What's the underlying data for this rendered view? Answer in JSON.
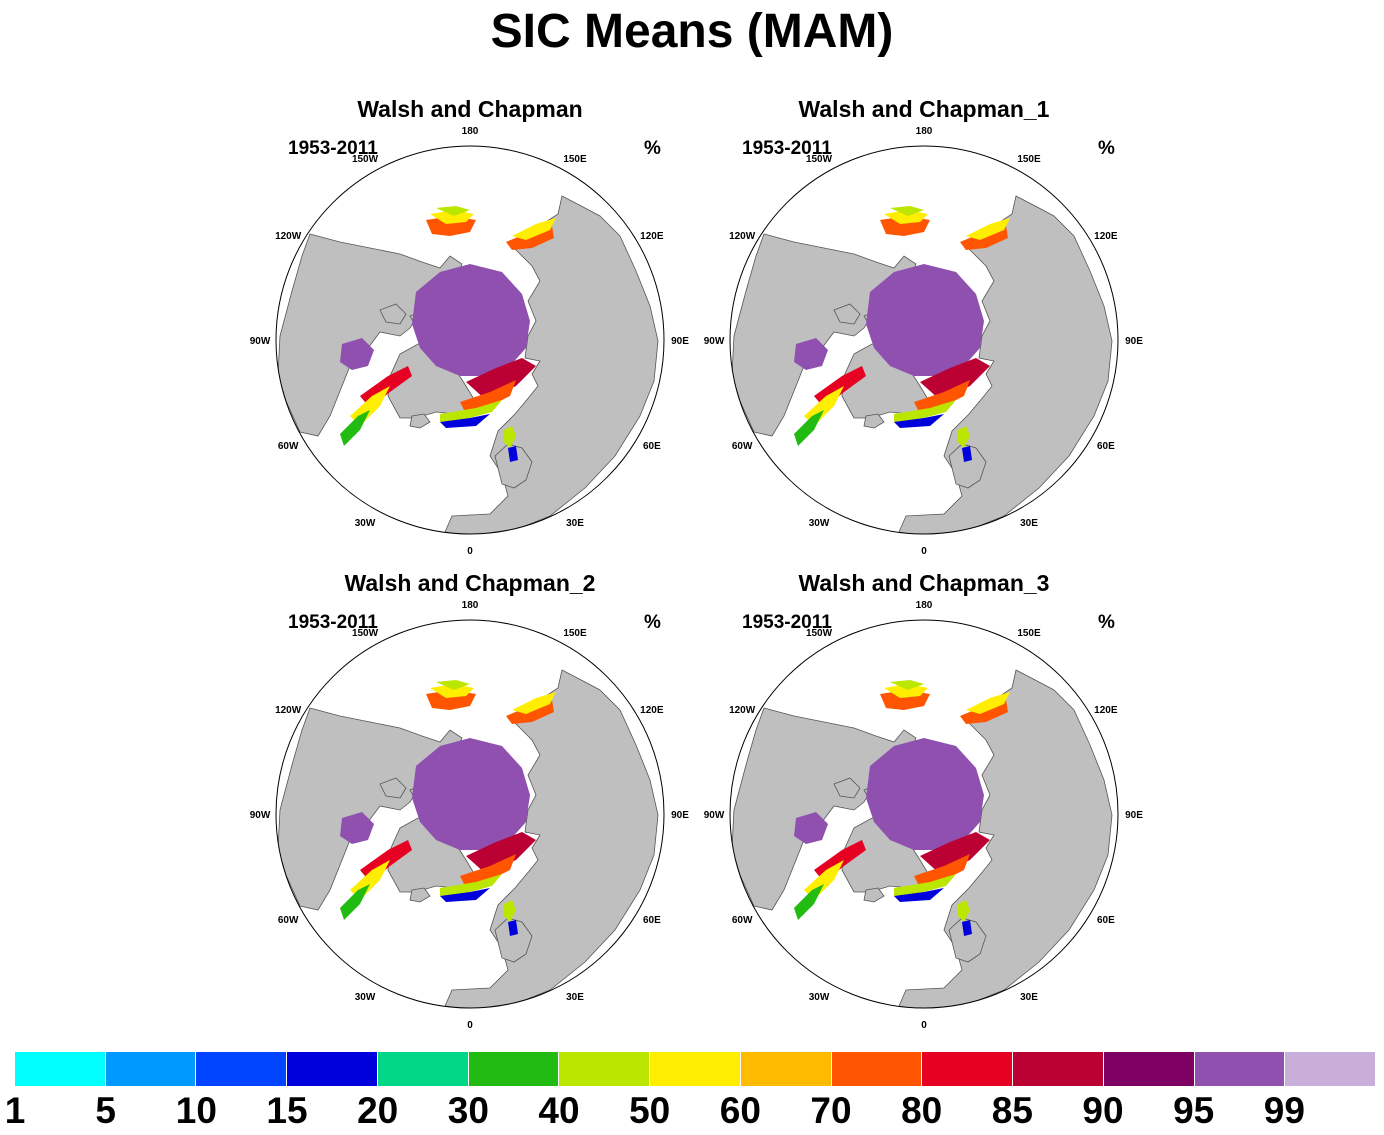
{
  "title": "SIC Means (MAM)",
  "panels": [
    {
      "title": "Walsh and Chapman",
      "years": "1953-2011",
      "units": "%"
    },
    {
      "title": "Walsh and Chapman_1",
      "years": "1953-2011",
      "units": "%"
    },
    {
      "title": "Walsh and Chapman_2",
      "years": "1953-2011",
      "units": "%"
    },
    {
      "title": "Walsh and Chapman_3",
      "years": "1953-2011",
      "units": "%"
    }
  ],
  "longitude_labels": [
    "180",
    "150E",
    "120E",
    "90E",
    "60E",
    "30E",
    "0",
    "30W",
    "60W",
    "90W",
    "120W",
    "150W"
  ],
  "colorbar": {
    "labels": [
      "1",
      "5",
      "10",
      "15",
      "20",
      "30",
      "40",
      "50",
      "60",
      "70",
      "80",
      "85",
      "90",
      "95",
      "99"
    ],
    "colors": [
      "#00ffff",
      "#0099ff",
      "#0044ff",
      "#0000dd",
      "#00d888",
      "#22bb11",
      "#bbe600",
      "#ffee00",
      "#ffbb00",
      "#ff5500",
      "#e60022",
      "#bb0033",
      "#7d0062",
      "#9050b0",
      "#c8aed8"
    ]
  },
  "colors": {
    "land": "#bfbfbf",
    "ocean": "#ffffff",
    "coast": "#555555"
  }
}
